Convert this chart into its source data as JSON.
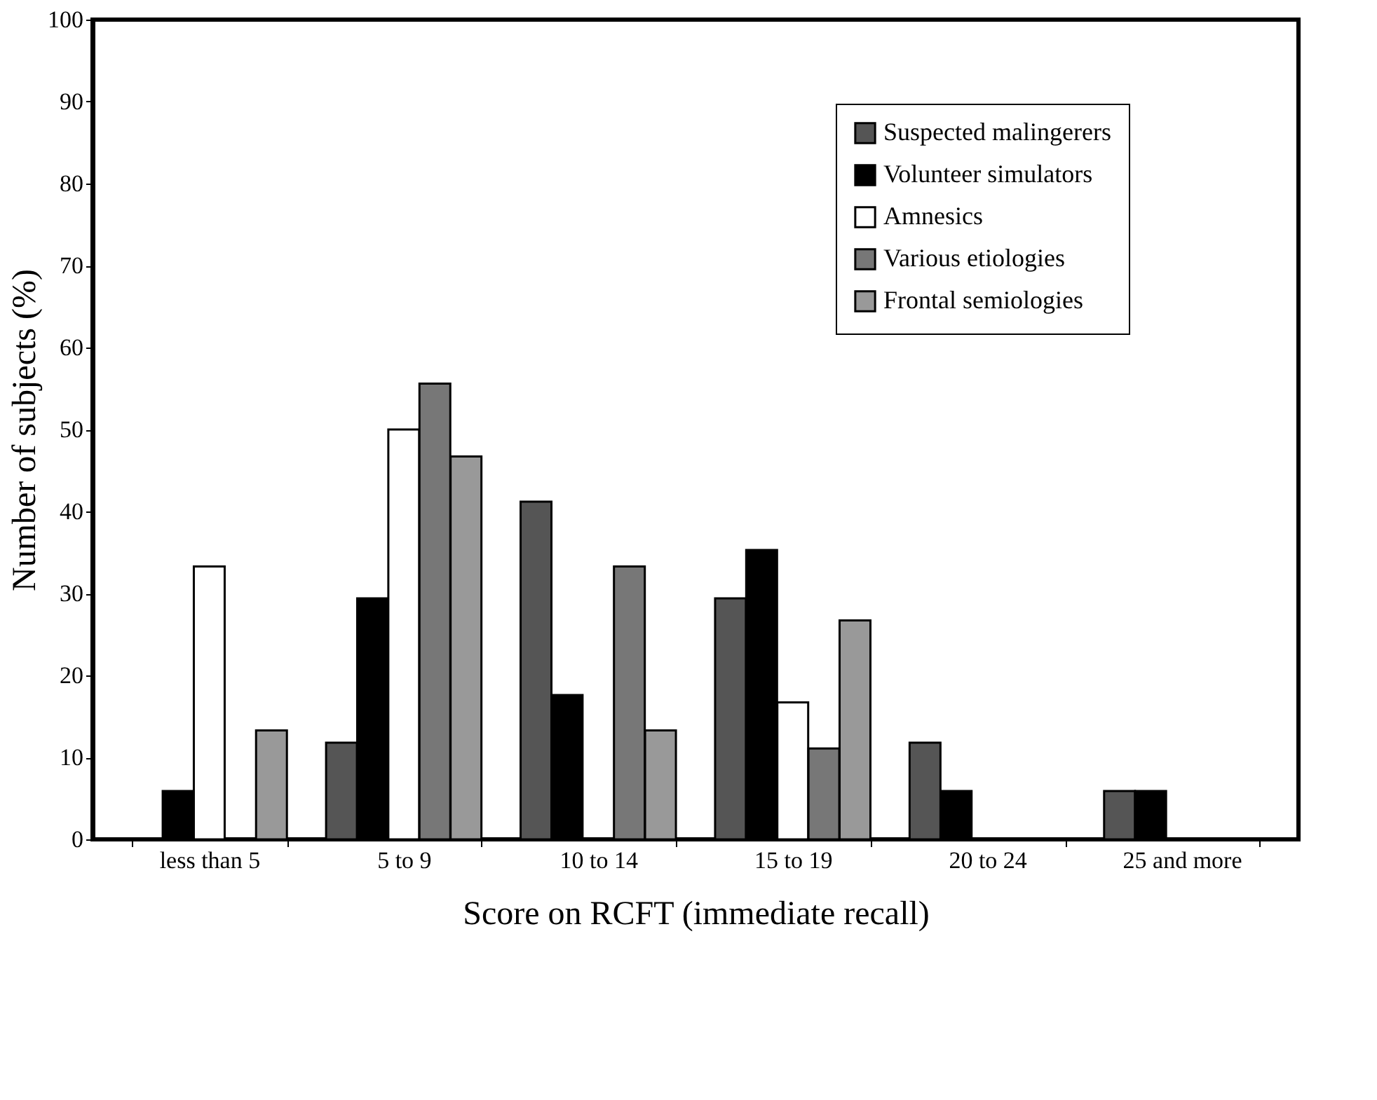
{
  "chart_data": {
    "type": "bar",
    "xlabel": "Score on RCFT (immediate recall)",
    "ylabel": "Number of subjects (%)",
    "categories": [
      "less than 5",
      "5 to 9",
      "10 to 14",
      "15 to 19",
      "20 to 24",
      "25 and more"
    ],
    "series": [
      {
        "name": "Suspected malingerers",
        "color": "#555555",
        "values": [
          0,
          11.8,
          41.2,
          29.4,
          11.8,
          5.9
        ]
      },
      {
        "name": "Volunteer simulators",
        "color": "#000000",
        "values": [
          5.9,
          29.4,
          17.6,
          35.3,
          5.9,
          5.9
        ]
      },
      {
        "name": "Amnesics",
        "color": "#ffffff",
        "values": [
          33.3,
          50,
          0,
          16.7,
          0,
          0
        ]
      },
      {
        "name": "Various etiologies",
        "color": "#777777",
        "values": [
          0,
          55.6,
          33.3,
          11.1,
          0,
          0
        ]
      },
      {
        "name": "Frontal semiologies",
        "color": "#999999",
        "values": [
          13.3,
          46.7,
          13.3,
          26.7,
          0,
          0
        ]
      }
    ],
    "ylim": [
      0,
      100
    ],
    "yticks": [
      0,
      10,
      20,
      30,
      40,
      50,
      60,
      70,
      80,
      90,
      100
    ],
    "grid": false,
    "legend": "top right"
  }
}
